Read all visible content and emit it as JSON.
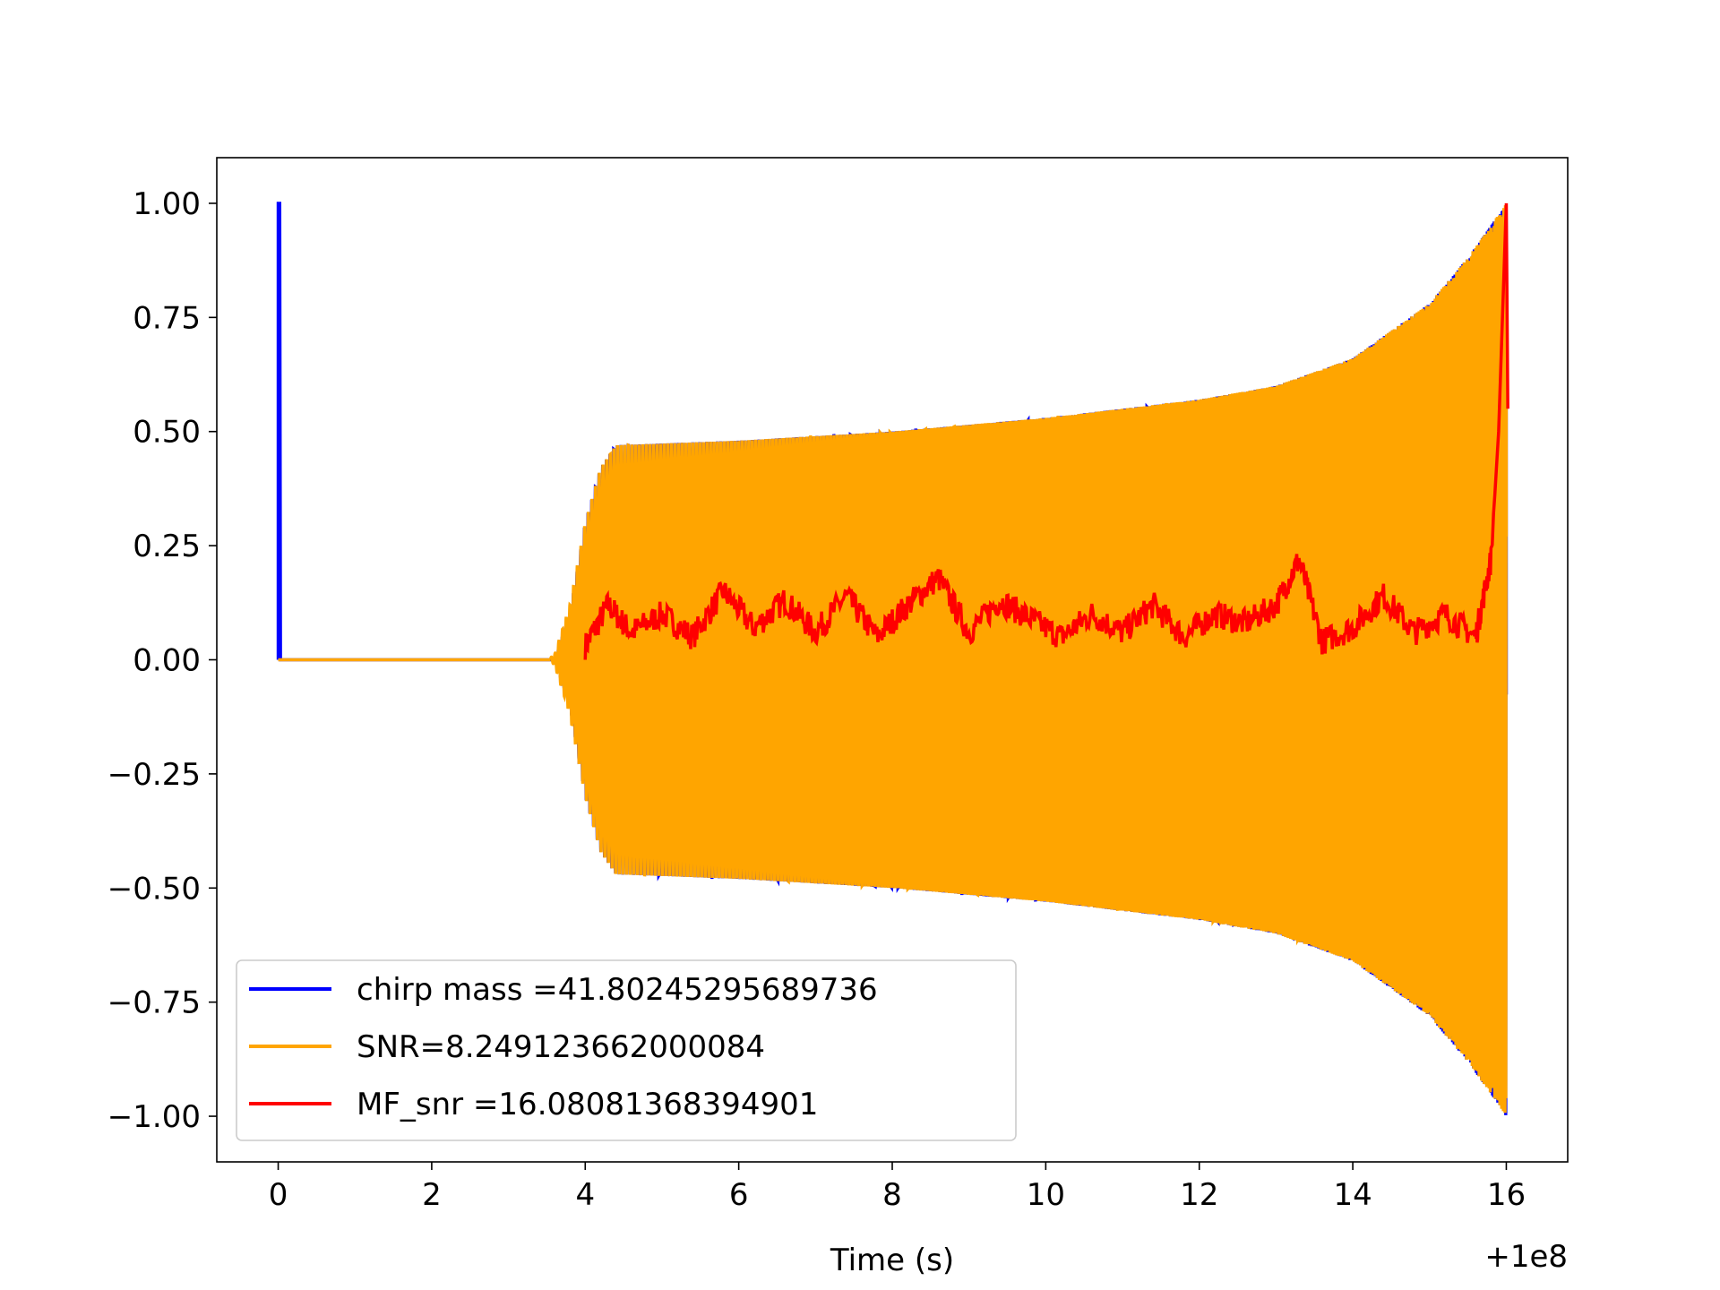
{
  "chart_data": {
    "type": "line",
    "title": "",
    "xlabel": "Time (s)",
    "ylabel": "",
    "x_offset_label": "+1e8",
    "xlim": [
      -0.8,
      16.8
    ],
    "ylim": [
      -1.1,
      1.1
    ],
    "xticks": [
      0,
      2,
      4,
      6,
      8,
      10,
      12,
      14,
      16
    ],
    "xtick_labels": [
      "0",
      "2",
      "4",
      "6",
      "8",
      "10",
      "12",
      "14",
      "16"
    ],
    "yticks": [
      1.0,
      0.75,
      0.5,
      0.25,
      0.0,
      -0.25,
      -0.5,
      -0.75,
      -1.0
    ],
    "ytick_labels": [
      "1.00",
      "0.75",
      "0.50",
      "0.25",
      "0.00",
      "−0.25",
      "−0.50",
      "−0.75",
      "−1.00"
    ],
    "grid": false,
    "legend_position": "lower-left",
    "series": [
      {
        "name": "chirp mass =41.80245295689736",
        "color": "#0000ff",
        "kind": "template_chirp",
        "description_points": {
          "x": [
            0.0,
            0.02,
            0.03,
            3.6,
            3.8,
            4.0,
            4.2,
            4.4,
            6.0,
            8.0,
            10.0,
            12.0,
            13.0,
            14.0,
            15.0,
            15.5,
            15.8,
            16.0
          ],
          "envelope": [
            1.0,
            0.0,
            0.0,
            0.0,
            0.1,
            0.3,
            0.42,
            0.47,
            0.48,
            0.5,
            0.53,
            0.57,
            0.6,
            0.66,
            0.78,
            0.88,
            0.95,
            1.0
          ]
        }
      },
      {
        "name": "SNR=8.249123662000084",
        "color": "#ffa500",
        "kind": "signal_chirp",
        "description_points": {
          "x": [
            0.0,
            3.5,
            3.6,
            3.8,
            4.0,
            4.2,
            4.4,
            6.0,
            8.0,
            10.0,
            12.0,
            13.0,
            14.0,
            15.0,
            15.5,
            15.8,
            16.0
          ],
          "envelope": [
            0.0,
            0.0,
            0.01,
            0.12,
            0.3,
            0.42,
            0.47,
            0.48,
            0.5,
            0.53,
            0.57,
            0.6,
            0.66,
            0.78,
            0.88,
            0.95,
            1.0
          ]
        }
      },
      {
        "name": "MF_snr =16.08081368394901",
        "color": "#ff0000",
        "kind": "matched_filter_snr",
        "x": [
          4.0,
          4.3,
          4.6,
          5.0,
          5.4,
          5.8,
          6.2,
          6.6,
          7.0,
          7.4,
          7.8,
          8.2,
          8.6,
          9.0,
          9.4,
          9.8,
          10.2,
          10.6,
          11.0,
          11.4,
          11.8,
          12.2,
          12.6,
          13.0,
          13.3,
          13.6,
          14.0,
          14.4,
          14.8,
          15.2,
          15.6,
          15.8,
          15.9,
          16.0
        ],
        "y": [
          0.03,
          0.12,
          0.06,
          0.1,
          0.05,
          0.15,
          0.07,
          0.13,
          0.06,
          0.14,
          0.05,
          0.12,
          0.18,
          0.06,
          0.13,
          0.09,
          0.05,
          0.1,
          0.06,
          0.12,
          0.05,
          0.1,
          0.08,
          0.12,
          0.22,
          0.04,
          0.07,
          0.14,
          0.06,
          0.1,
          0.05,
          0.22,
          0.5,
          1.0
        ]
      }
    ]
  }
}
